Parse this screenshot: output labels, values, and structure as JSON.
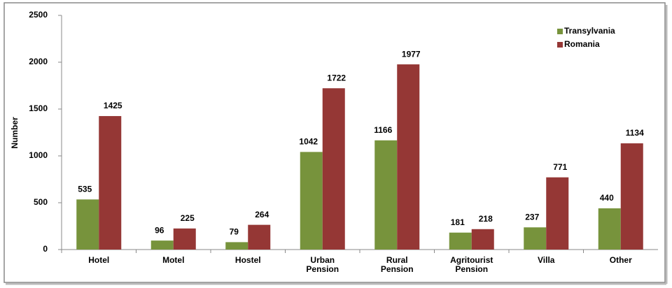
{
  "chart_data": {
    "type": "bar",
    "categories": [
      "Hotel",
      "Motel",
      "Hostel",
      "Urban Pension",
      "Rural Pension",
      "Agritourist Pension",
      "Villa",
      "Other"
    ],
    "y_label": "Number",
    "series": [
      {
        "name": "Transylvania",
        "color": "#77933c",
        "values": [
          535,
          96,
          79,
          1042,
          1166,
          181,
          237,
          440
        ]
      },
      {
        "name": "Romania",
        "color": "#953735",
        "values": [
          1425,
          225,
          264,
          1722,
          1977,
          218,
          771,
          1134
        ]
      }
    ],
    "ylim": [
      0,
      2500
    ],
    "yticks": [
      0,
      500,
      1000,
      1500,
      2000,
      2500
    ],
    "grid": false,
    "legend": "upper right"
  }
}
